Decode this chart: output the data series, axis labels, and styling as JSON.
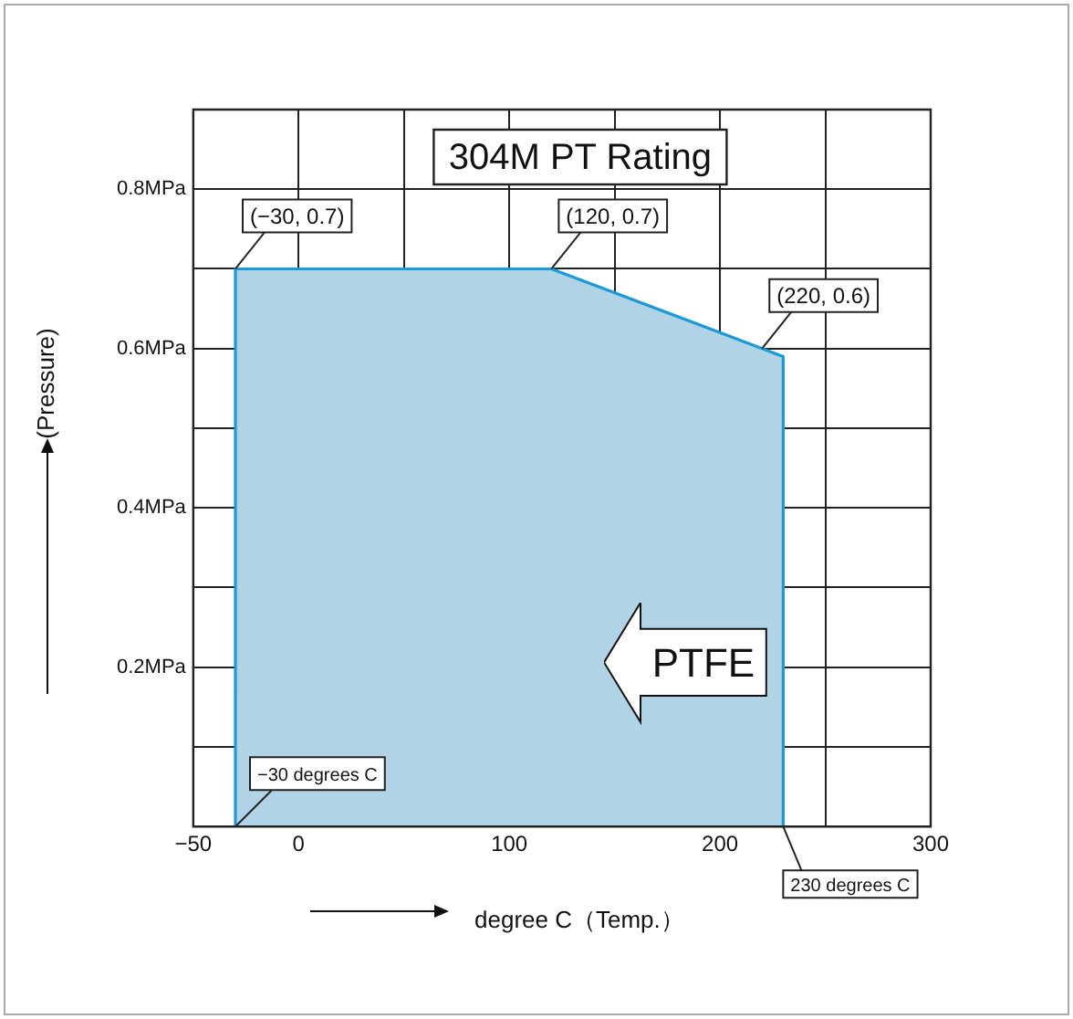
{
  "chart_data": {
    "type": "area",
    "title": "304M PT Rating",
    "xlabel": "degree C（Temp.）",
    "ylabel": "(Pressure)",
    "x": [
      -30,
      -30,
      120,
      220,
      230,
      230
    ],
    "values": [
      0,
      0.7,
      0.7,
      0.6,
      0.59,
      0
    ],
    "color": "#1a9bd7",
    "xlim": [
      -50,
      300
    ],
    "xticks": [
      {
        "value": -50,
        "label": "−50"
      },
      0,
      {
        "value": 50,
        "label": null
      },
      100,
      {
        "value": 150,
        "label": null
      },
      200,
      {
        "value": 250,
        "label": null
      },
      300
    ],
    "ylim": [
      0,
      0.9
    ],
    "yticks": [
      {
        "value": 0,
        "label": null
      },
      {
        "value": 0.1,
        "label": null
      },
      {
        "value": 0.2,
        "label": "0.2MPa"
      },
      {
        "value": 0.3,
        "label": null
      },
      {
        "value": 0.4,
        "label": "0.4MPa"
      },
      {
        "value": 0.5,
        "label": null
      },
      {
        "value": 0.6,
        "label": "0.6MPa"
      },
      {
        "value": 0.7,
        "label": null
      },
      {
        "value": 0.8,
        "label": "0.8MPa"
      },
      {
        "value": 0.9,
        "label": null
      }
    ],
    "grid": true,
    "legend": false,
    "annotations": [
      {
        "text": "(−30, 0.7)",
        "x": -30,
        "y": 0.7
      },
      {
        "text": "(120, 0.7)",
        "x": 120,
        "y": 0.7
      },
      {
        "text": "(220, 0.6)",
        "x": 220,
        "y": 0.6
      },
      {
        "text": "−30 degrees C",
        "x": -30,
        "y": 0
      },
      {
        "text": "230 degrees C",
        "x": 230,
        "y": 0
      },
      "PTFE"
    ]
  }
}
